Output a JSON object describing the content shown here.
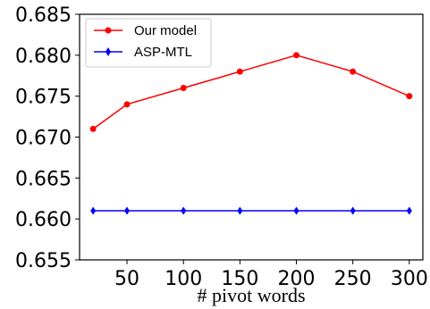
{
  "chart_data": {
    "type": "line",
    "title": "",
    "xlabel": "# pivot words",
    "ylabel": "",
    "x": [
      20,
      50,
      100,
      150,
      200,
      250,
      300
    ],
    "xticks": [
      50,
      100,
      150,
      200,
      250,
      300
    ],
    "xlim": [
      8,
      312
    ],
    "ylim": [
      0.655,
      0.685
    ],
    "yticks": [
      0.655,
      0.66,
      0.665,
      0.67,
      0.675,
      0.68,
      0.685
    ],
    "ytick_labels": [
      "0.655",
      "0.660",
      "0.665",
      "0.670",
      "0.675",
      "0.680",
      "0.685"
    ],
    "grid": false,
    "legend_position": "top-left",
    "series": [
      {
        "name": "Our model",
        "color": "#ff0000",
        "marker": "circle",
        "values": [
          0.671,
          0.674,
          0.676,
          0.678,
          0.68,
          0.678,
          0.675
        ]
      },
      {
        "name": "ASP-MTL",
        "color": "#0000ff",
        "marker": "diamond",
        "values": [
          0.661,
          0.661,
          0.661,
          0.661,
          0.661,
          0.661,
          0.661
        ]
      }
    ]
  }
}
